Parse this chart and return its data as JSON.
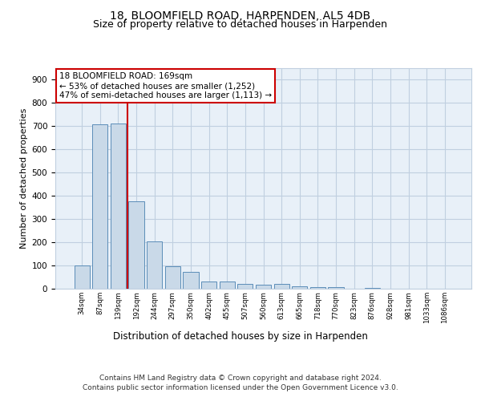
{
  "title": "18, BLOOMFIELD ROAD, HARPENDEN, AL5 4DB",
  "subtitle": "Size of property relative to detached houses in Harpenden",
  "xlabel": "Distribution of detached houses by size in Harpenden",
  "ylabel": "Number of detached properties",
  "categories": [
    "34sqm",
    "87sqm",
    "139sqm",
    "192sqm",
    "244sqm",
    "297sqm",
    "350sqm",
    "402sqm",
    "455sqm",
    "507sqm",
    "560sqm",
    "613sqm",
    "665sqm",
    "718sqm",
    "770sqm",
    "823sqm",
    "876sqm",
    "928sqm",
    "981sqm",
    "1033sqm",
    "1086sqm"
  ],
  "values": [
    100,
    707,
    712,
    375,
    205,
    96,
    71,
    30,
    30,
    20,
    17,
    20,
    10,
    6,
    8,
    0,
    5,
    0,
    0,
    0,
    0
  ],
  "bar_color": "#c9d9e8",
  "bar_edge_color": "#5b8db8",
  "vline_x": 2.5,
  "vline_color": "#cc0000",
  "annotation_line1": "18 BLOOMFIELD ROAD: 169sqm",
  "annotation_line2": "← 53% of detached houses are smaller (1,252)",
  "annotation_line3": "47% of semi-detached houses are larger (1,113) →",
  "annotation_box_color": "#cc0000",
  "ylim": [
    0,
    950
  ],
  "yticks": [
    0,
    100,
    200,
    300,
    400,
    500,
    600,
    700,
    800,
    900
  ],
  "grid_color": "#c0cfe0",
  "bg_color": "#e8f0f8",
  "footer_line1": "Contains HM Land Registry data © Crown copyright and database right 2024.",
  "footer_line2": "Contains public sector information licensed under the Open Government Licence v3.0.",
  "title_fontsize": 10,
  "subtitle_fontsize": 9,
  "xlabel_fontsize": 8.5,
  "ylabel_fontsize": 8,
  "annot_fontsize": 7.5,
  "footer_fontsize": 6.5
}
